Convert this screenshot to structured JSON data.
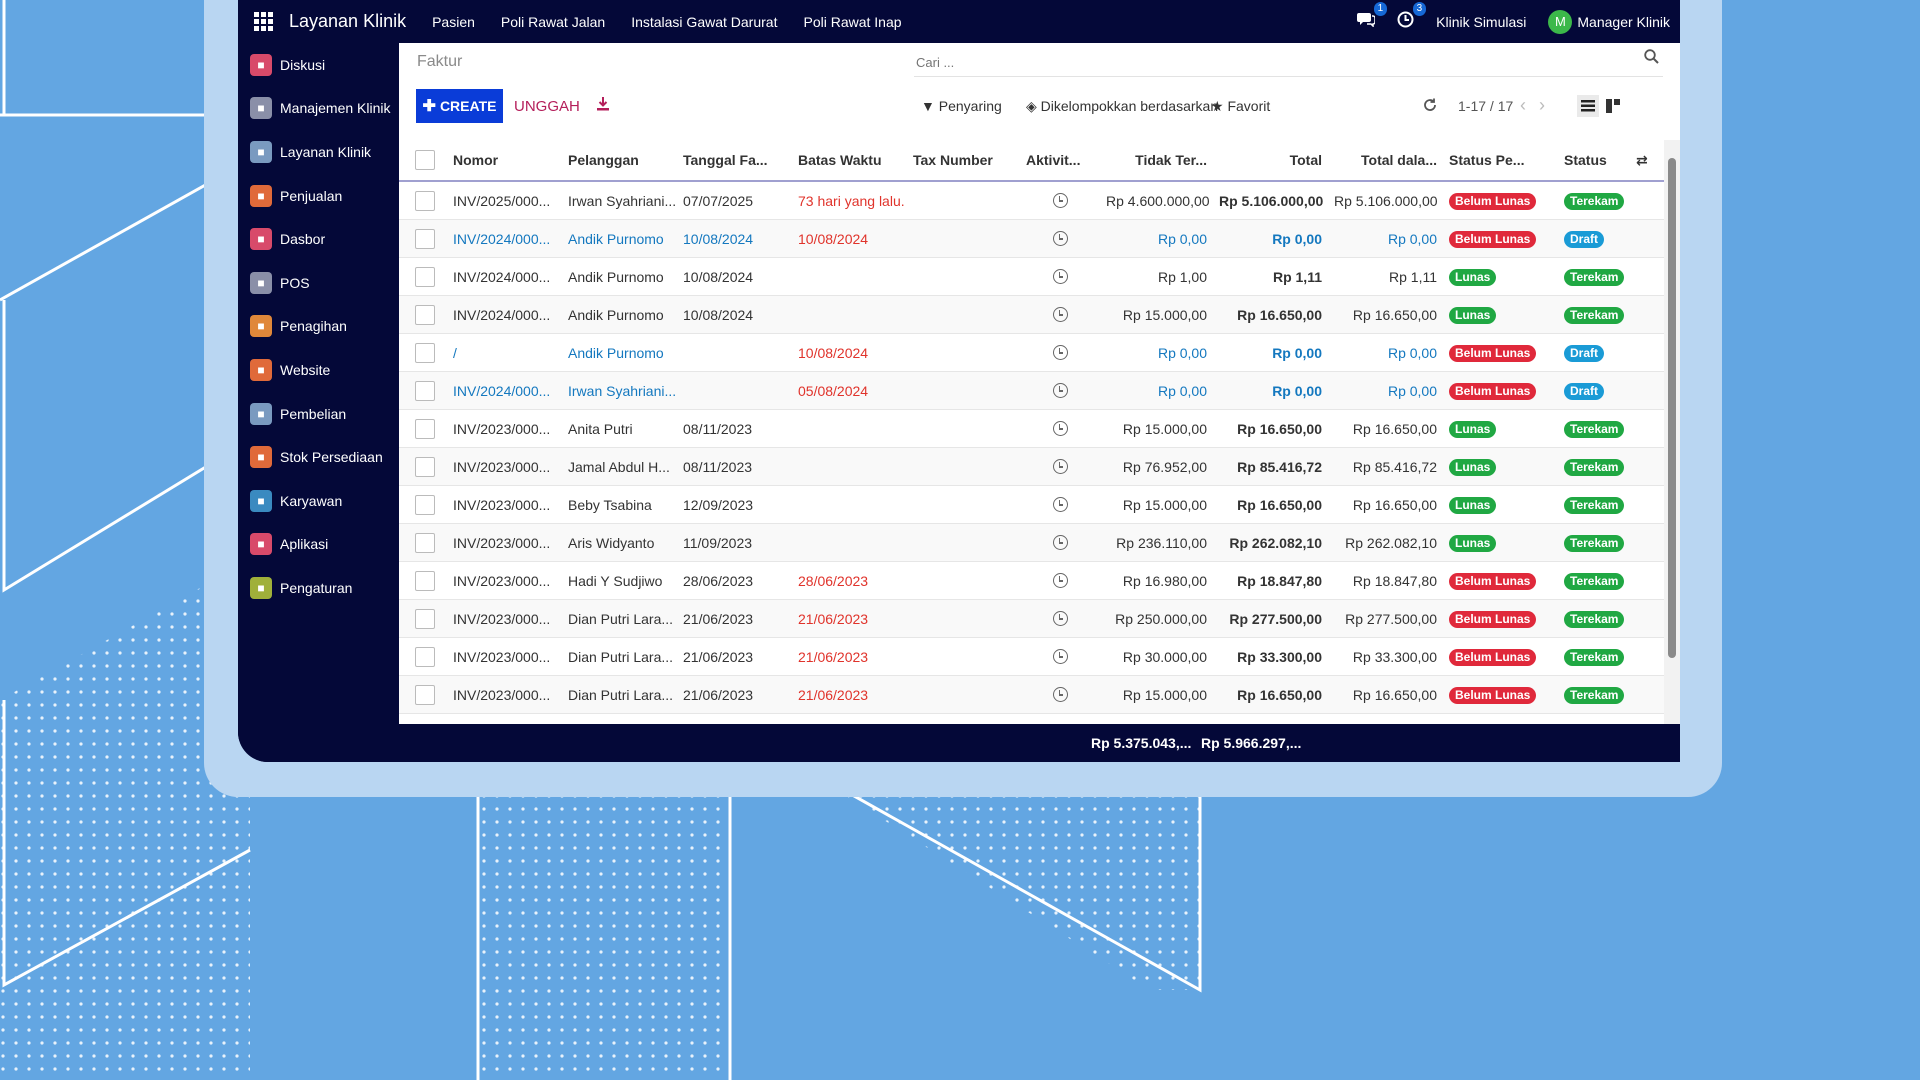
{
  "colors": {
    "background": "#63a6e2",
    "app_dark": "#040838",
    "primary": "#0a3cd8",
    "accent": "#b41e5a",
    "danger": "#e0293b",
    "success": "#20a843",
    "info": "#1a9bd6"
  },
  "topbar": {
    "app_name": "Layanan Klinik",
    "menus": [
      "Pasien",
      "Poli Rawat Jalan",
      "Instalasi Gawat Darurat",
      "Poli Rawat Inap"
    ],
    "chat_badge": "1",
    "activity_badge": "3",
    "company": "Klinik Simulasi",
    "avatar_letter": "M",
    "user": "Manager Klinik"
  },
  "sidebar": {
    "items": [
      {
        "label": "Diskusi",
        "icon": "chat-icon",
        "color": "#d84a6a"
      },
      {
        "label": "Manajemen Klinik",
        "icon": "building-icon",
        "color": "#8a8fa8"
      },
      {
        "label": "Layanan Klinik",
        "icon": "hospital-icon",
        "color": "#7a9ac0"
      },
      {
        "label": "Penjualan",
        "icon": "chart-icon",
        "color": "#e06a3a"
      },
      {
        "label": "Dasbor",
        "icon": "gauge-icon",
        "color": "#d84a6a"
      },
      {
        "label": "POS",
        "icon": "register-icon",
        "color": "#8a8fa8"
      },
      {
        "label": "Penagihan",
        "icon": "invoice-icon",
        "color": "#e0883a"
      },
      {
        "label": "Website",
        "icon": "globe-icon",
        "color": "#e06a3a"
      },
      {
        "label": "Pembelian",
        "icon": "card-icon",
        "color": "#7a9ac0"
      },
      {
        "label": "Stok Persediaan",
        "icon": "box-icon",
        "color": "#e06a3a"
      },
      {
        "label": "Karyawan",
        "icon": "users-icon",
        "color": "#3a8ac0"
      },
      {
        "label": "Aplikasi",
        "icon": "apps-icon",
        "color": "#d84a6a"
      },
      {
        "label": "Pengaturan",
        "icon": "gear-icon",
        "color": "#a0b03a"
      }
    ]
  },
  "page": {
    "title": "Faktur",
    "search_placeholder": "Cari ..."
  },
  "toolbar": {
    "create": "CREATE",
    "upload": "UNGGAH",
    "filter": "Penyaring",
    "group_by": "Dikelompokkan berdasarkan",
    "favorites": "Favorit",
    "pager": "1-17 / 17"
  },
  "table": {
    "columns": [
      "Nomor",
      "Pelanggan",
      "Tanggal Fa...",
      "Batas Waktu",
      "Tax Number",
      "Aktivit...",
      "Tidak Ter...",
      "Total",
      "Total dala...",
      "Status Pe...",
      "Status"
    ],
    "rows": [
      {
        "nomor": "INV/2025/000...",
        "pelanggan": "Irwan Syahriani...",
        "tanggal": "07/07/2025",
        "batas": "73 hari yang lalu.",
        "tax": "",
        "untaxed": "Rp 4.600.000,00",
        "total": "Rp 5.106.000,00",
        "total_cur": "Rp 5.106.000,00",
        "payment": "Belum Lunas",
        "status": "Terekam",
        "draft": false
      },
      {
        "nomor": "INV/2024/000...",
        "pelanggan": "Andik Purnomo",
        "tanggal": "10/08/2024",
        "batas": "10/08/2024",
        "tax": "",
        "untaxed": "Rp 0,00",
        "total": "Rp 0,00",
        "total_cur": "Rp 0,00",
        "payment": "Belum Lunas",
        "status": "Draft",
        "draft": true
      },
      {
        "nomor": "INV/2024/000...",
        "pelanggan": "Andik Purnomo",
        "tanggal": "10/08/2024",
        "batas": "",
        "tax": "",
        "untaxed": "Rp 1,00",
        "total": "Rp 1,11",
        "total_cur": "Rp 1,11",
        "payment": "Lunas",
        "status": "Terekam",
        "draft": false
      },
      {
        "nomor": "INV/2024/000...",
        "pelanggan": "Andik Purnomo",
        "tanggal": "10/08/2024",
        "batas": "",
        "tax": "",
        "untaxed": "Rp 15.000,00",
        "total": "Rp 16.650,00",
        "total_cur": "Rp 16.650,00",
        "payment": "Lunas",
        "status": "Terekam",
        "draft": false
      },
      {
        "nomor": "/",
        "pelanggan": "Andik Purnomo",
        "tanggal": "",
        "batas": "10/08/2024",
        "tax": "",
        "untaxed": "Rp 0,00",
        "total": "Rp 0,00",
        "total_cur": "Rp 0,00",
        "payment": "Belum Lunas",
        "status": "Draft",
        "draft": true
      },
      {
        "nomor": "INV/2024/000...",
        "pelanggan": "Irwan Syahriani...",
        "tanggal": "",
        "batas": "05/08/2024",
        "tax": "",
        "untaxed": "Rp 0,00",
        "total": "Rp 0,00",
        "total_cur": "Rp 0,00",
        "payment": "Belum Lunas",
        "status": "Draft",
        "draft": true
      },
      {
        "nomor": "INV/2023/000...",
        "pelanggan": "Anita Putri",
        "tanggal": "08/11/2023",
        "batas": "",
        "tax": "",
        "untaxed": "Rp 15.000,00",
        "total": "Rp 16.650,00",
        "total_cur": "Rp 16.650,00",
        "payment": "Lunas",
        "status": "Terekam",
        "draft": false
      },
      {
        "nomor": "INV/2023/000...",
        "pelanggan": "Jamal Abdul H...",
        "tanggal": "08/11/2023",
        "batas": "",
        "tax": "",
        "untaxed": "Rp 76.952,00",
        "total": "Rp 85.416,72",
        "total_cur": "Rp 85.416,72",
        "payment": "Lunas",
        "status": "Terekam",
        "draft": false
      },
      {
        "nomor": "INV/2023/000...",
        "pelanggan": "Beby Tsabina",
        "tanggal": "12/09/2023",
        "batas": "",
        "tax": "",
        "untaxed": "Rp 15.000,00",
        "total": "Rp 16.650,00",
        "total_cur": "Rp 16.650,00",
        "payment": "Lunas",
        "status": "Terekam",
        "draft": false
      },
      {
        "nomor": "INV/2023/000...",
        "pelanggan": "Aris Widyanto",
        "tanggal": "11/09/2023",
        "batas": "",
        "tax": "",
        "untaxed": "Rp 236.110,00",
        "total": "Rp 262.082,10",
        "total_cur": "Rp 262.082,10",
        "payment": "Lunas",
        "status": "Terekam",
        "draft": false
      },
      {
        "nomor": "INV/2023/000...",
        "pelanggan": "Hadi Y Sudjiwo",
        "tanggal": "28/06/2023",
        "batas": "28/06/2023",
        "tax": "",
        "untaxed": "Rp 16.980,00",
        "total": "Rp 18.847,80",
        "total_cur": "Rp 18.847,80",
        "payment": "Belum Lunas",
        "status": "Terekam",
        "draft": false
      },
      {
        "nomor": "INV/2023/000...",
        "pelanggan": "Dian Putri Lara...",
        "tanggal": "21/06/2023",
        "batas": "21/06/2023",
        "tax": "",
        "untaxed": "Rp 250.000,00",
        "total": "Rp 277.500,00",
        "total_cur": "Rp 277.500,00",
        "payment": "Belum Lunas",
        "status": "Terekam",
        "draft": false
      },
      {
        "nomor": "INV/2023/000...",
        "pelanggan": "Dian Putri Lara...",
        "tanggal": "21/06/2023",
        "batas": "21/06/2023",
        "tax": "",
        "untaxed": "Rp 30.000,00",
        "total": "Rp 33.300,00",
        "total_cur": "Rp 33.300,00",
        "payment": "Belum Lunas",
        "status": "Terekam",
        "draft": false
      },
      {
        "nomor": "INV/2023/000...",
        "pelanggan": "Dian Putri Lara...",
        "tanggal": "21/06/2023",
        "batas": "21/06/2023",
        "tax": "",
        "untaxed": "Rp 15.000,00",
        "total": "Rp 16.650,00",
        "total_cur": "Rp 16.650,00",
        "payment": "Belum Lunas",
        "status": "Terekam",
        "draft": false
      }
    ]
  },
  "footer": {
    "untaxed_sum": "Rp 5.375.043,...",
    "total_sum": "Rp 5.966.297,..."
  }
}
